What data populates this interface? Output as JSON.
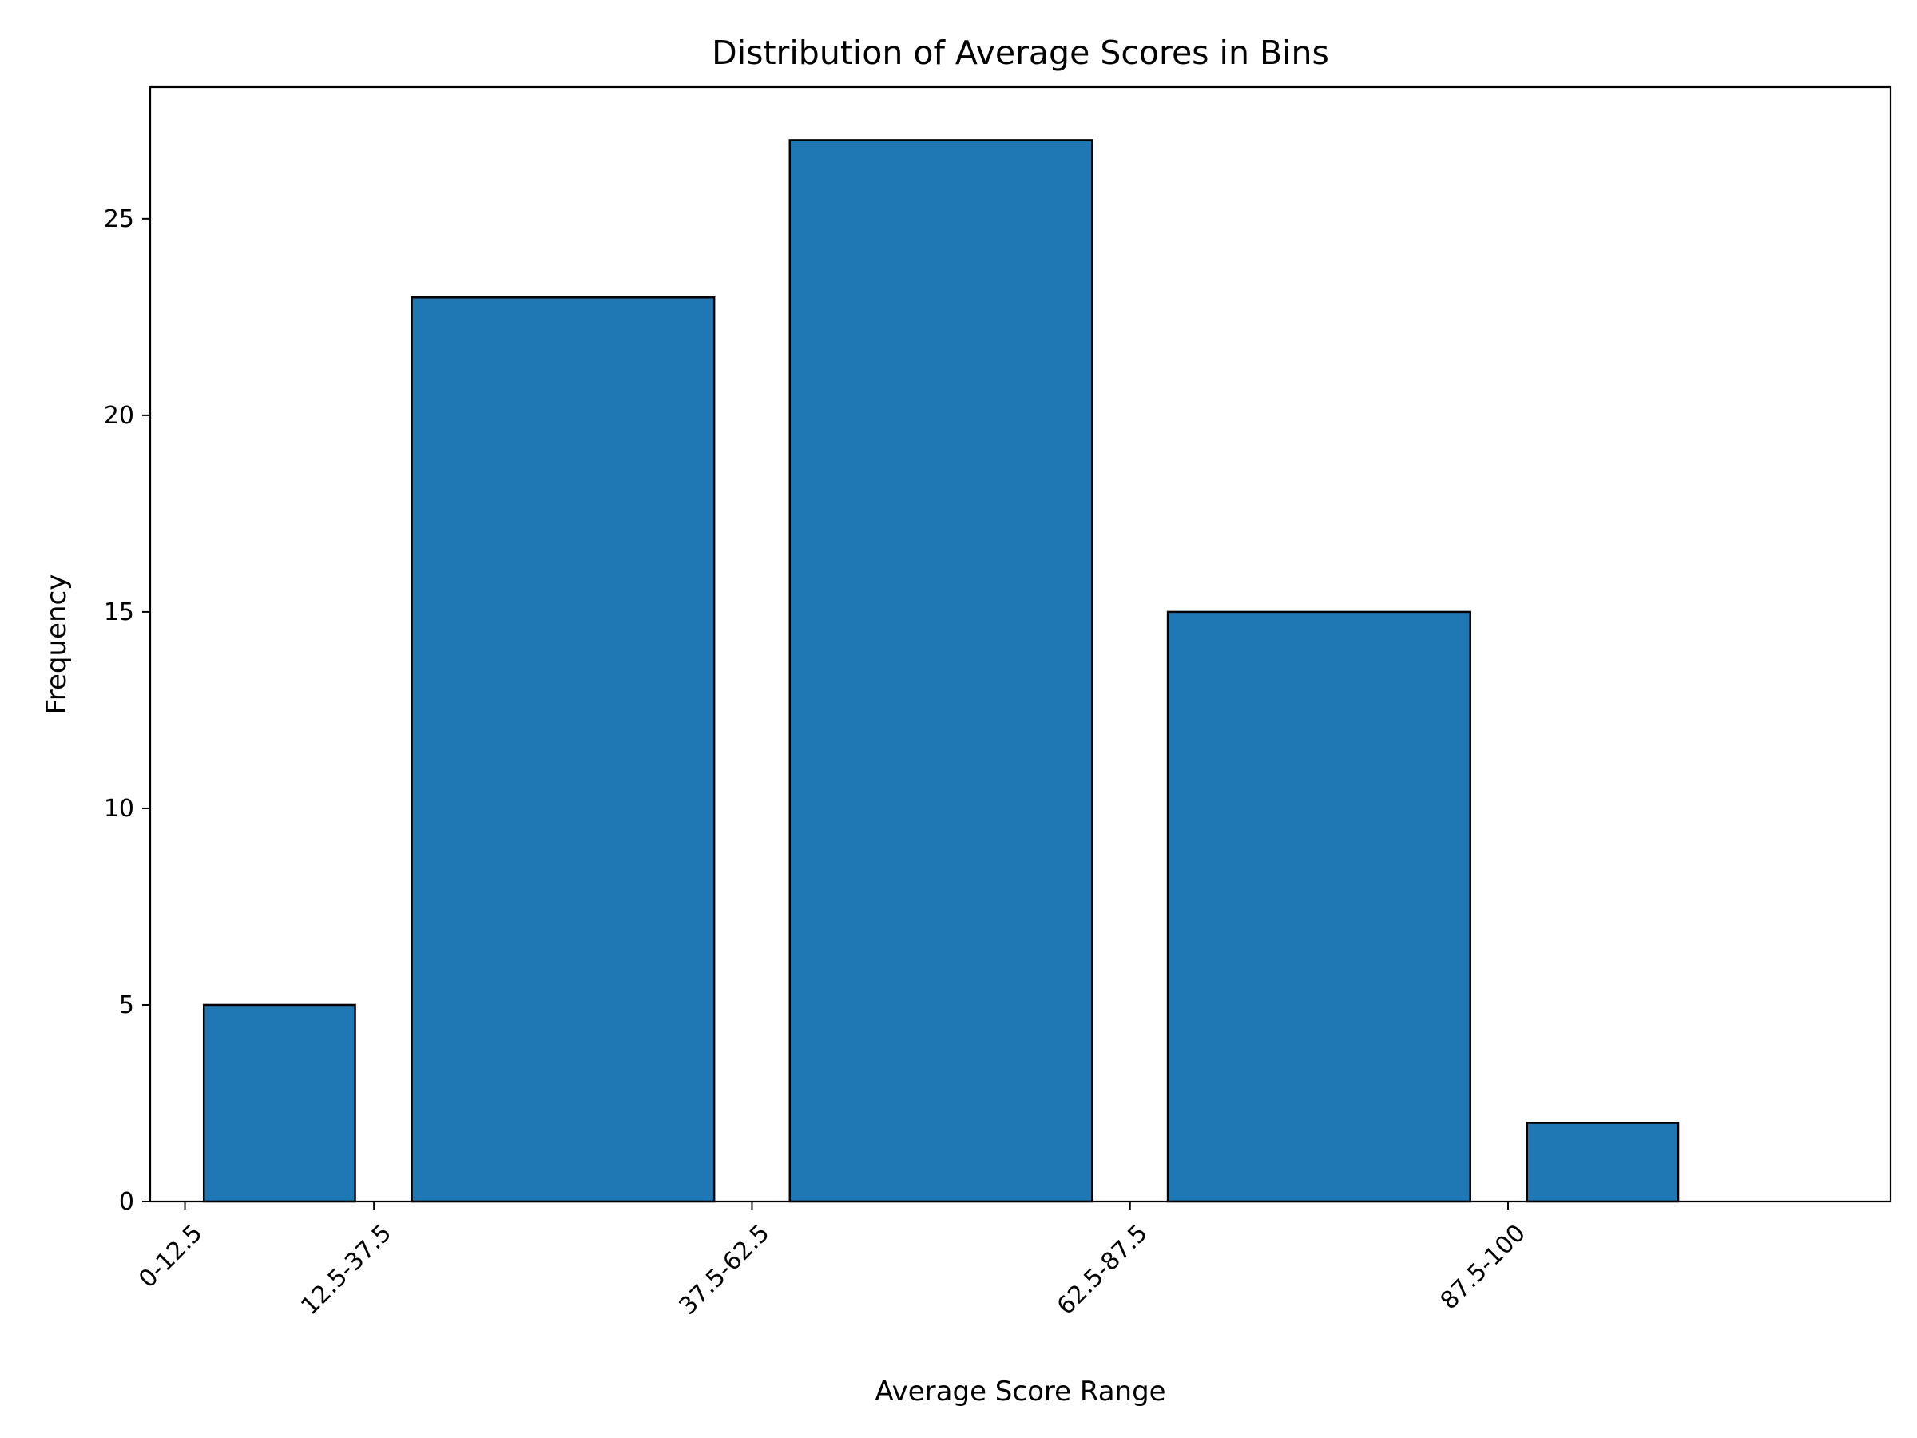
{
  "chart_data": {
    "type": "bar",
    "title": "Distribution of Average Scores in Bins",
    "xlabel": "Average Score Range",
    "ylabel": "Frequency",
    "bins": [
      0,
      12.5,
      37.5,
      62.5,
      87.5,
      100
    ],
    "categories": [
      "0-12.5",
      "12.5-37.5",
      "37.5-62.5",
      "62.5-87.5",
      "87.5-100"
    ],
    "values": [
      5,
      23,
      27,
      15,
      2
    ],
    "xlim": [
      -2.3,
      112.8
    ],
    "ylim": [
      0,
      28.35
    ],
    "yticks": [
      0,
      5,
      10,
      15,
      20,
      25
    ],
    "bar_color": "#1f77b4",
    "edge_color": "#000000",
    "grid": false,
    "legend": "none"
  }
}
